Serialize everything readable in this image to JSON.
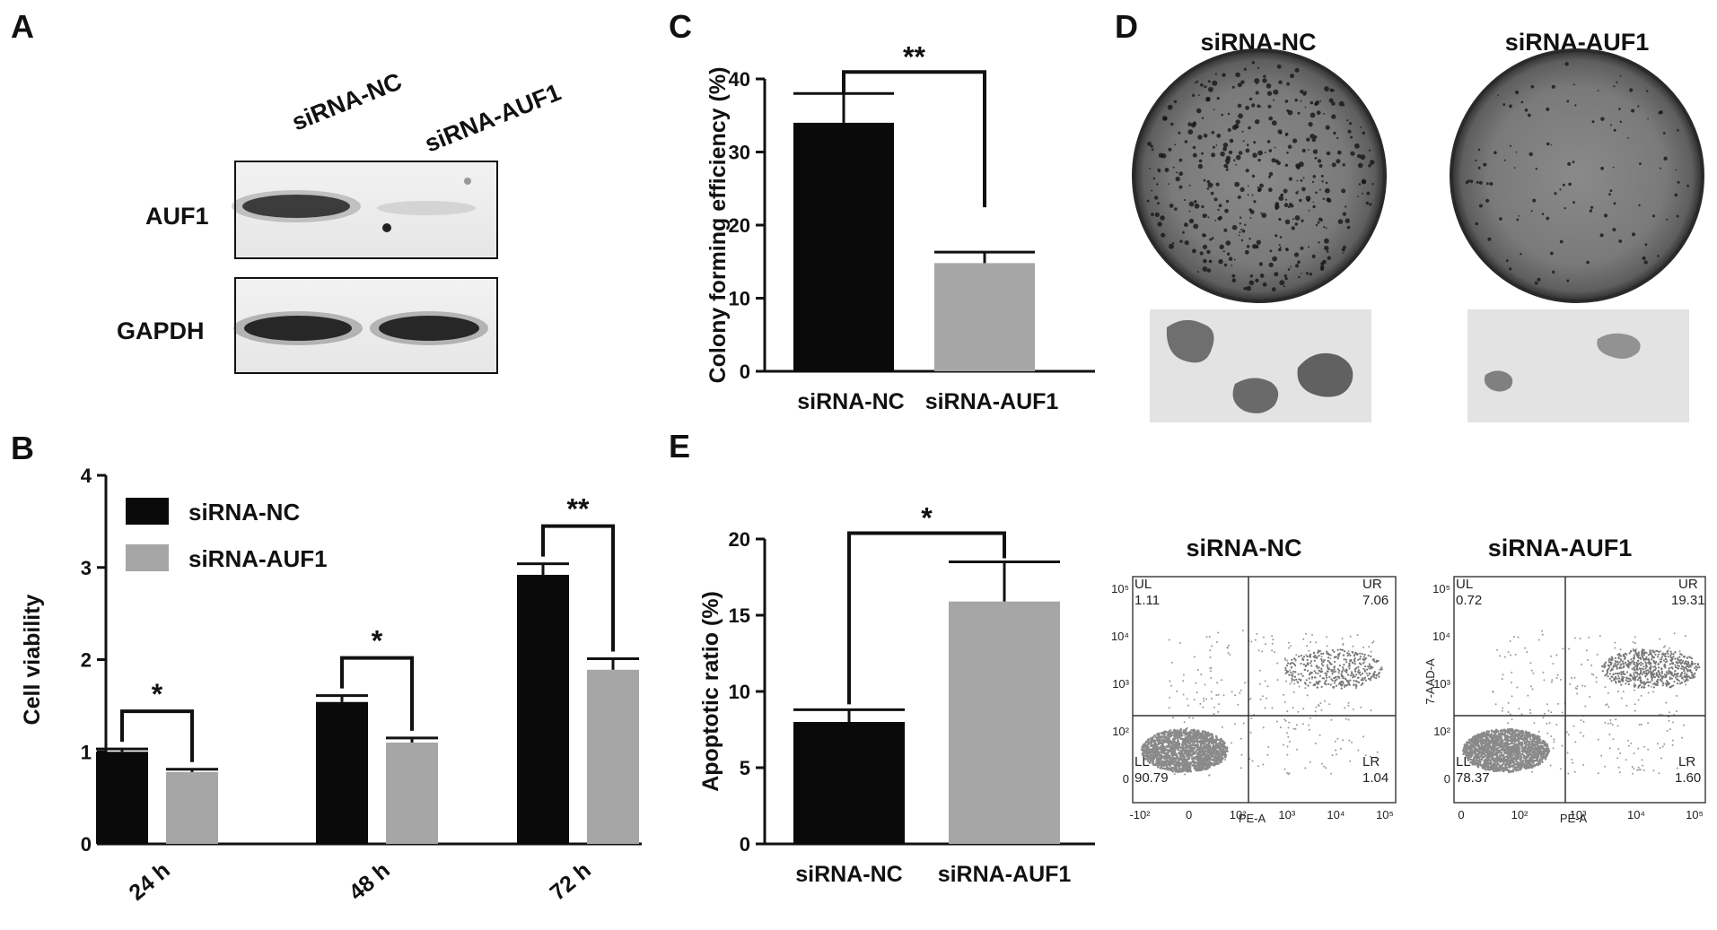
{
  "panels": {
    "a": "A",
    "b": "B",
    "c": "C",
    "d": "D",
    "e": "E"
  },
  "panel_a": {
    "columns": [
      "siRNA-NC",
      "siRNA-AUF1"
    ],
    "rows": [
      "AUF1",
      "GAPDH"
    ]
  },
  "panel_d": {
    "columns": [
      "siRNA-NC",
      "siRNA-AUF1"
    ]
  },
  "flow": [
    {
      "title": "siRNA-NC",
      "quadrants": {
        "UL": "1.11",
        "UR": "7.06",
        "LL": "90.79",
        "LR": "1.04"
      },
      "xlabel": "PE-A",
      "ylabel": "",
      "quad_names": {
        "UL": "UL",
        "UR": "UR",
        "LL": "LL",
        "LR": "LR"
      },
      "x_ticks": [
        "-10²",
        "0",
        "10²",
        "10³",
        "10⁴",
        "10⁵"
      ],
      "y_ticks": [
        "10⁵",
        "10⁴",
        "10³",
        "10²",
        "0"
      ]
    },
    {
      "title": "siRNA-AUF1",
      "quadrants": {
        "UL": "0.72",
        "UR": "19.31",
        "LL": "78.37",
        "LR": "1.60"
      },
      "xlabel": "PE-A",
      "ylabel": "7-AAD-A",
      "quad_names": {
        "UL": "UL",
        "UR": "UR",
        "LL": "LL",
        "LR": "LR"
      },
      "x_ticks": [
        "0",
        "10²",
        "10³",
        "10⁴",
        "10⁵"
      ],
      "y_ticks": [
        "10⁵",
        "10⁴",
        "10³",
        "10²",
        "0"
      ]
    }
  ],
  "chart_data": [
    {
      "id": "B",
      "type": "bar",
      "categories": [
        "24 h",
        "48 h",
        "72 h"
      ],
      "series": [
        {
          "name": "siRNA-NC",
          "values": [
            1.0,
            1.54,
            2.92
          ],
          "errors": [
            0.03,
            0.07,
            0.12
          ]
        },
        {
          "name": "siRNA-AUF1",
          "values": [
            0.78,
            1.1,
            1.89
          ],
          "errors": [
            0.03,
            0.05,
            0.12
          ]
        }
      ],
      "colors": [
        "#0a0a0a",
        "#a6a6a6"
      ],
      "ylabel": "Cell viability",
      "ylim": [
        0,
        4
      ],
      "yticks": [
        0,
        1,
        2,
        3,
        4
      ],
      "significance": [
        "*",
        "*",
        "**"
      ],
      "legend": "top-left"
    },
    {
      "id": "C",
      "type": "bar",
      "categories": [
        "siRNA-NC",
        "siRNA-AUF1"
      ],
      "values": [
        34,
        14.8
      ],
      "errors": [
        4,
        1.5
      ],
      "colors": [
        "#0a0a0a",
        "#a6a6a6"
      ],
      "ylabel": "Colony forming efficiency (%)",
      "ylim": [
        0,
        40
      ],
      "yticks": [
        0,
        10,
        20,
        30,
        40
      ],
      "significance": "**"
    },
    {
      "id": "E",
      "type": "bar",
      "categories": [
        "siRNA-NC",
        "siRNA-AUF1"
      ],
      "values": [
        8,
        15.9
      ],
      "errors": [
        0.8,
        2.6
      ],
      "colors": [
        "#0a0a0a",
        "#a6a6a6"
      ],
      "ylabel": "Apoptotic  ratio (%)",
      "ylim": [
        0,
        20
      ],
      "yticks": [
        0,
        5,
        10,
        15,
        20
      ],
      "significance": "*"
    }
  ]
}
